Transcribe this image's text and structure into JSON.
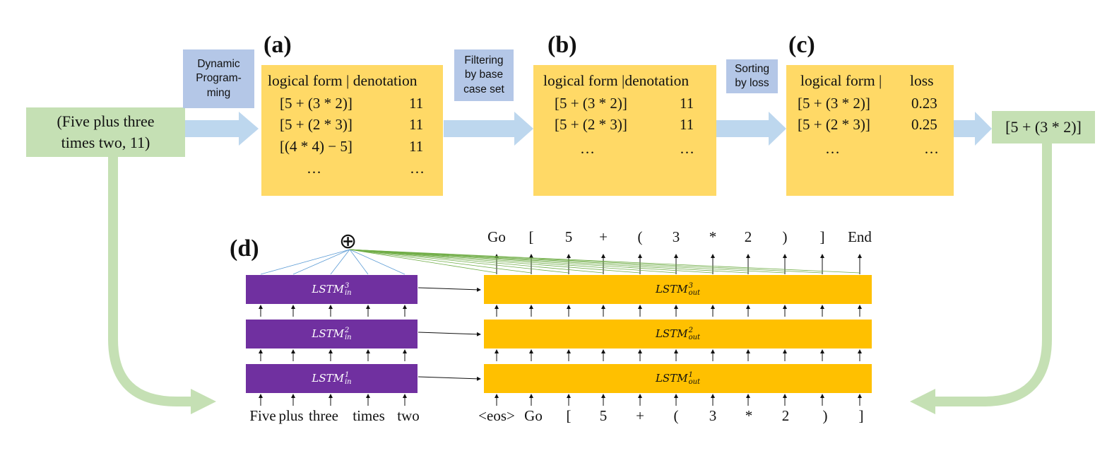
{
  "colors": {
    "yellow_box": "#ffd966",
    "green_box": "#c5e0b4",
    "blue_label": "#b4c7e7",
    "blue_arrow": "#bdd7ee",
    "green_arrow": "#c5e0b4",
    "lstm_in": "#7030a0",
    "lstm_out": "#ffc000"
  },
  "input_box": {
    "line1": "(Five plus three",
    "line2": "times two,  11)"
  },
  "output_box": {
    "text": "[5 + (3 * 2)]"
  },
  "arrow_labels": {
    "dp": {
      "line1": "Dynamic",
      "line2": "Program-",
      "line3": "ming"
    },
    "filter": {
      "line1": "Filtering",
      "line2": "by base",
      "line3": "case set"
    },
    "sort": {
      "line1": "Sorting",
      "line2": "by loss"
    }
  },
  "panel_a": {
    "letter": "(a)",
    "header": "logical form | denotation",
    "rows": [
      {
        "form": "[5 + (3 * 2)]",
        "value": "11"
      },
      {
        "form": "[5 + (2 * 3)]",
        "value": "11"
      },
      {
        "form": "[(4 * 4) − 5]",
        "value": "11"
      },
      {
        "form": "…",
        "value": "…"
      }
    ]
  },
  "panel_b": {
    "letter": "(b)",
    "header": "logical form |denotation",
    "rows": [
      {
        "form": "[5 + (3 * 2)]",
        "value": "11"
      },
      {
        "form": "[5 + (2 * 3)]",
        "value": "11"
      },
      {
        "form": "…",
        "value": "…"
      }
    ]
  },
  "panel_c": {
    "letter": "(c)",
    "header_form": "logical form |",
    "header_loss": "loss",
    "rows": [
      {
        "form": "[5 + (3 * 2)]",
        "value": "0.23"
      },
      {
        "form": "[5 + (2 * 3)]",
        "value": "0.25"
      },
      {
        "form": "…",
        "value": "…"
      }
    ]
  },
  "panel_d": {
    "letter": "(d)",
    "attention_symbol": "⊕",
    "encoder_layers": [
      {
        "base": "LSTM",
        "sup": "3",
        "sub": "in"
      },
      {
        "base": "LSTM",
        "sup": "2",
        "sub": "in"
      },
      {
        "base": "LSTM",
        "sup": "1",
        "sub": "in"
      }
    ],
    "decoder_layers": [
      {
        "base": "LSTM",
        "sup": "3",
        "sub": "out"
      },
      {
        "base": "LSTM",
        "sup": "2",
        "sub": "out"
      },
      {
        "base": "LSTM",
        "sup": "1",
        "sub": "out"
      }
    ],
    "encoder_inputs": [
      "Five",
      "plus",
      "three",
      "times",
      "two"
    ],
    "decoder_inputs": [
      "<eos>",
      "Go",
      "[",
      "5",
      "+",
      "(",
      "3",
      "*",
      "2",
      ")",
      "]"
    ],
    "decoder_outputs": [
      "Go",
      "[",
      "5",
      "+",
      "(",
      "3",
      "*",
      "2",
      ")",
      "]",
      "End"
    ]
  }
}
